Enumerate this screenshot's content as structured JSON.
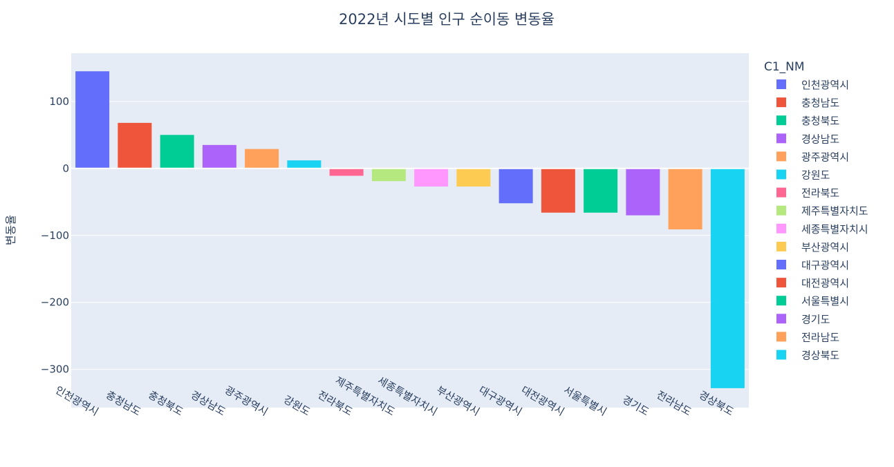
{
  "chart_data": {
    "type": "bar",
    "title": "2022년 시도별 인구 순이동 변동율",
    "xlabel": "",
    "ylabel": "변동율",
    "ylim": [
      -357,
      172
    ],
    "yticks": [
      100,
      0,
      -100,
      -200,
      -300
    ],
    "ytick_labels": [
      "100",
      "0",
      "−100",
      "−200",
      "−300"
    ],
    "legend_title": "C1_NM",
    "legend_position": "right",
    "grid": true,
    "categories": [
      "인천광역시",
      "충청남도",
      "충청북도",
      "경상남도",
      "광주광역시",
      "강원도",
      "전라북도",
      "제주특별자치도",
      "세종특별자치시",
      "부산광역시",
      "대구광역시",
      "대전광역시",
      "서울특별시",
      "경기도",
      "전라남도",
      "경상북도"
    ],
    "values": [
      145,
      68,
      50,
      35,
      29,
      12,
      -11,
      -19,
      -27,
      -27,
      -52,
      -66,
      -66,
      -70,
      -91,
      -328
    ],
    "colors": [
      "#636efa",
      "#EF553B",
      "#00cc96",
      "#ab63fa",
      "#FFA15A",
      "#19d3f3",
      "#FF6692",
      "#B6E880",
      "#FF97FF",
      "#FECB52",
      "#636efa",
      "#EF553B",
      "#00cc96",
      "#ab63fa",
      "#FFA15A",
      "#19d3f3"
    ]
  }
}
